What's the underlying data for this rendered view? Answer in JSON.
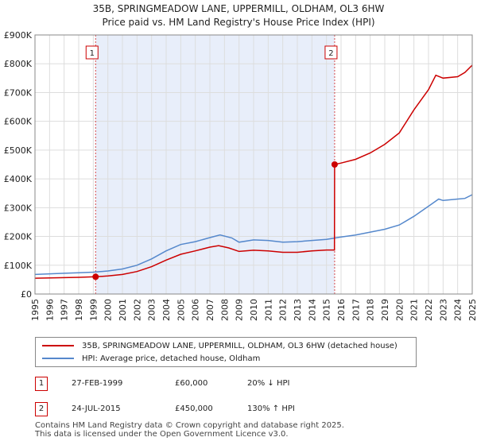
{
  "chart_data": {
    "type": "line",
    "title_line1": "35B, SPRINGMEADOW LANE, UPPERMILL, OLDHAM, OL3 6HW",
    "title_line2": "Price paid vs. HM Land Registry's House Price Index (HPI)",
    "xlim": [
      1995,
      2025
    ],
    "ylim": [
      0,
      900000
    ],
    "x_ticks": [
      1995,
      1996,
      1997,
      1998,
      1999,
      2000,
      2001,
      2002,
      2003,
      2004,
      2005,
      2006,
      2007,
      2008,
      2009,
      2010,
      2011,
      2012,
      2013,
      2014,
      2015,
      2016,
      2017,
      2018,
      2019,
      2020,
      2021,
      2022,
      2023,
      2024,
      2025
    ],
    "y_ticks": [
      {
        "value": 0,
        "label": "£0"
      },
      {
        "value": 100000,
        "label": "£100K"
      },
      {
        "value": 200000,
        "label": "£200K"
      },
      {
        "value": 300000,
        "label": "£300K"
      },
      {
        "value": 400000,
        "label": "£400K"
      },
      {
        "value": 500000,
        "label": "£500K"
      },
      {
        "value": 600000,
        "label": "£600K"
      },
      {
        "value": 700000,
        "label": "£700K"
      },
      {
        "value": 800000,
        "label": "£800K"
      },
      {
        "value": 900000,
        "label": "£900K"
      }
    ],
    "shaded_region": [
      1999.16,
      2015.56
    ],
    "series": [
      {
        "name": "35B, SPRINGMEADOW LANE, UPPERMILL, OLDHAM, OL3 6HW (detached house)",
        "color": "#cc0000",
        "points": [
          [
            1995.0,
            55000
          ],
          [
            1996.0,
            56000
          ],
          [
            1997.0,
            57000
          ],
          [
            1998.0,
            58000
          ],
          [
            1999.16,
            60000
          ],
          [
            2000.0,
            63000
          ],
          [
            2001.0,
            68000
          ],
          [
            2002.0,
            78000
          ],
          [
            2003.0,
            95000
          ],
          [
            2004.0,
            118000
          ],
          [
            2005.0,
            138000
          ],
          [
            2006.0,
            150000
          ],
          [
            2007.0,
            163000
          ],
          [
            2007.6,
            168000
          ],
          [
            2008.3,
            160000
          ],
          [
            2009.0,
            148000
          ],
          [
            2010.0,
            152000
          ],
          [
            2011.0,
            150000
          ],
          [
            2012.0,
            145000
          ],
          [
            2013.0,
            145000
          ],
          [
            2014.0,
            150000
          ],
          [
            2015.0,
            153000
          ],
          [
            2015.55,
            153000
          ],
          [
            2015.56,
            450000
          ],
          [
            2016.0,
            455000
          ],
          [
            2017.0,
            468000
          ],
          [
            2018.0,
            490000
          ],
          [
            2019.0,
            520000
          ],
          [
            2020.0,
            560000
          ],
          [
            2021.0,
            640000
          ],
          [
            2022.0,
            710000
          ],
          [
            2022.5,
            760000
          ],
          [
            2023.0,
            750000
          ],
          [
            2024.0,
            755000
          ],
          [
            2024.5,
            770000
          ],
          [
            2025.0,
            795000
          ]
        ]
      },
      {
        "name": "HPI: Average price, detached house, Oldham",
        "color": "#5588cc",
        "points": [
          [
            1995.0,
            68000
          ],
          [
            1996.0,
            70000
          ],
          [
            1997.0,
            72000
          ],
          [
            1998.0,
            74000
          ],
          [
            1999.0,
            76000
          ],
          [
            2000.0,
            80000
          ],
          [
            2001.0,
            87000
          ],
          [
            2002.0,
            100000
          ],
          [
            2003.0,
            122000
          ],
          [
            2004.0,
            150000
          ],
          [
            2005.0,
            172000
          ],
          [
            2006.0,
            182000
          ],
          [
            2007.0,
            196000
          ],
          [
            2007.7,
            205000
          ],
          [
            2008.5,
            195000
          ],
          [
            2009.0,
            180000
          ],
          [
            2010.0,
            188000
          ],
          [
            2011.0,
            186000
          ],
          [
            2012.0,
            180000
          ],
          [
            2013.0,
            182000
          ],
          [
            2014.0,
            186000
          ],
          [
            2015.0,
            190000
          ],
          [
            2016.0,
            198000
          ],
          [
            2017.0,
            205000
          ],
          [
            2018.0,
            215000
          ],
          [
            2019.0,
            225000
          ],
          [
            2020.0,
            240000
          ],
          [
            2021.0,
            270000
          ],
          [
            2022.0,
            305000
          ],
          [
            2022.7,
            330000
          ],
          [
            2023.0,
            325000
          ],
          [
            2024.0,
            330000
          ],
          [
            2024.5,
            332000
          ],
          [
            2025.0,
            345000
          ]
        ]
      }
    ],
    "markers": [
      {
        "label": "1",
        "x": 1999.16,
        "y": 60000
      },
      {
        "label": "2",
        "x": 2015.56,
        "y": 450000
      }
    ]
  },
  "legend": {
    "items": [
      {
        "label": "35B, SPRINGMEADOW LANE, UPPERMILL, OLDHAM, OL3 6HW (detached house)",
        "color": "#cc0000"
      },
      {
        "label": "HPI: Average price, detached house, Oldham",
        "color": "#5588cc"
      }
    ]
  },
  "sales": [
    {
      "num": "1",
      "date": "27-FEB-1999",
      "price": "£60,000",
      "hpi": "20% ↓ HPI"
    },
    {
      "num": "2",
      "date": "24-JUL-2015",
      "price": "£450,000",
      "hpi": "130% ↑ HPI"
    }
  ],
  "footer": "Contains HM Land Registry data © Crown copyright and database right 2025.\nThis data is licensed under the Open Government Licence v3.0."
}
